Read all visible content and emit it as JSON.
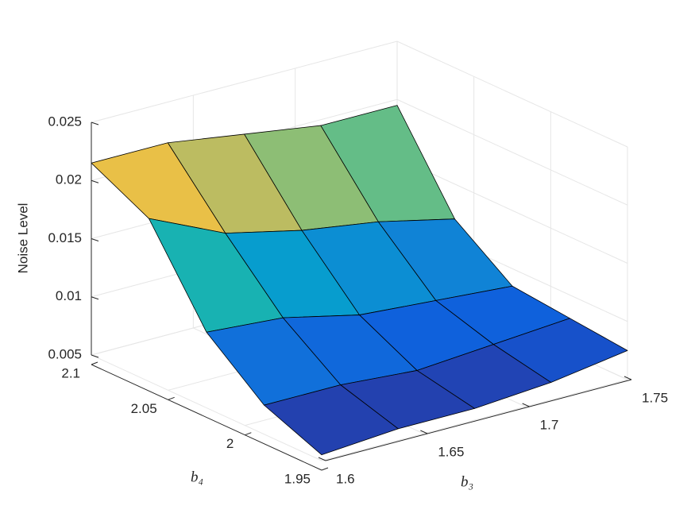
{
  "chart_data": {
    "type": "surface",
    "xlabel": "b₃",
    "ylabel": "b₄",
    "zlabel": "Noise Level",
    "x": [
      1.6,
      1.6375,
      1.675,
      1.7125,
      1.75
    ],
    "y": [
      1.95,
      1.9875,
      2.025,
      2.0625,
      2.1
    ],
    "z": [
      [
        0.0055,
        0.006,
        0.006,
        0.0065,
        0.0075
      ],
      [
        0.0075,
        0.0075,
        0.007,
        0.0075,
        0.008
      ],
      [
        0.0115,
        0.011,
        0.0095,
        0.009,
        0.0085
      ],
      [
        0.019,
        0.016,
        0.0145,
        0.0135,
        0.012
      ],
      [
        0.0215,
        0.0215,
        0.0205,
        0.0195,
        0.0195
      ]
    ],
    "xlim": [
      1.6,
      1.75
    ],
    "xticks": [
      1.6,
      1.65,
      1.7,
      1.75
    ],
    "ylim": [
      1.95,
      2.1
    ],
    "yticks": [
      1.95,
      2,
      2.05,
      2.1
    ],
    "zlim": [
      0.005,
      0.025
    ],
    "zticks": [
      0.005,
      0.01,
      0.015,
      0.02,
      0.025
    ],
    "colormap": "parula",
    "grid": true
  }
}
